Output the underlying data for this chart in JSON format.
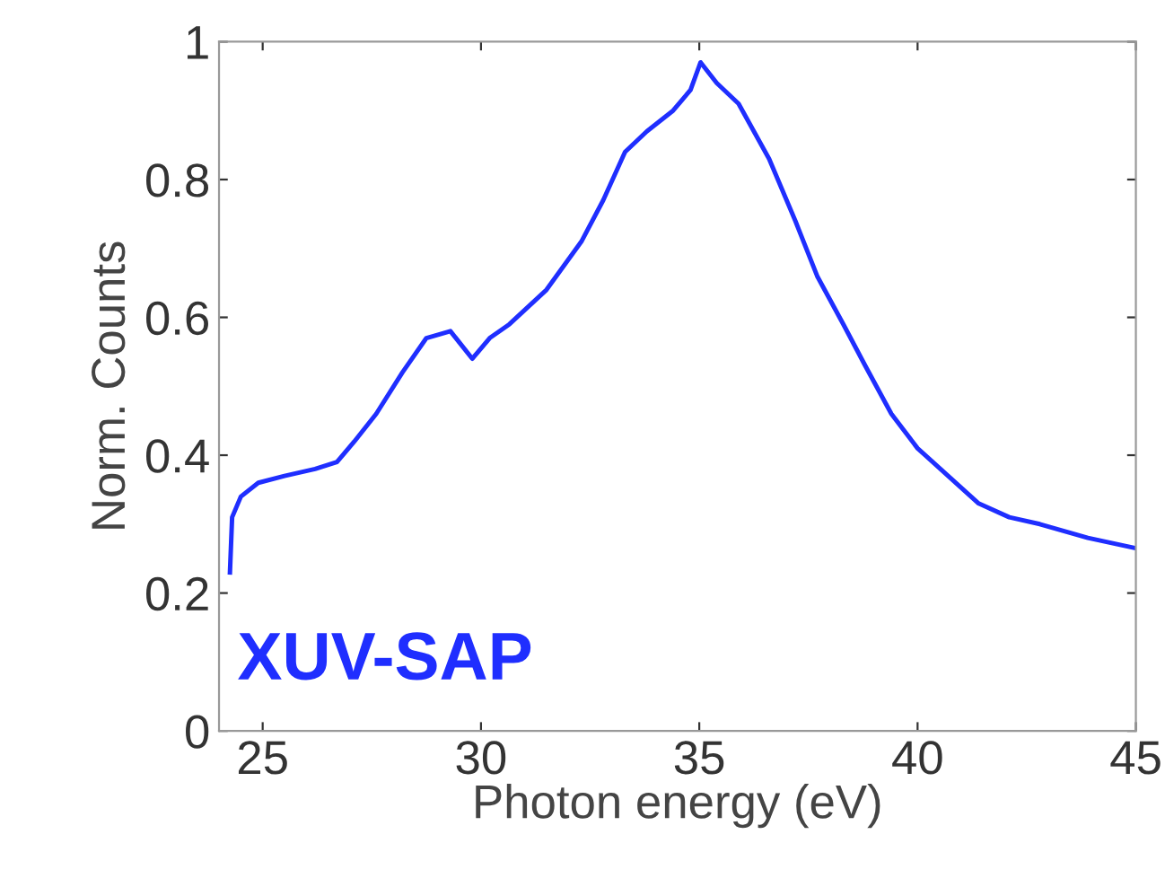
{
  "chart_data": {
    "type": "line",
    "xlabel": "Photon energy (eV)",
    "ylabel": "Norm. Counts",
    "annotations": [
      "XUV-SAP"
    ],
    "series": [
      {
        "color": "#1f2eff",
        "x": [
          24.25,
          24.3,
          24.5,
          24.9,
          25.5,
          26.2,
          26.7,
          27.1,
          27.6,
          28.2,
          28.75,
          29.3,
          29.8,
          30.2,
          30.65,
          31.5,
          32.3,
          32.8,
          33.3,
          33.8,
          34.4,
          34.8,
          35.03,
          35.4,
          35.9,
          36.6,
          37.2,
          37.7,
          38.3,
          38.8,
          39.4,
          40.0,
          40.7,
          41.4,
          42.1,
          42.8,
          43.9,
          45.0
        ],
        "values": [
          0.23,
          0.31,
          0.34,
          0.36,
          0.37,
          0.38,
          0.39,
          0.42,
          0.46,
          0.52,
          0.57,
          0.58,
          0.54,
          0.57,
          0.59,
          0.64,
          0.71,
          0.77,
          0.84,
          0.87,
          0.9,
          0.93,
          0.97,
          0.94,
          0.91,
          0.83,
          0.74,
          0.66,
          0.59,
          0.53,
          0.46,
          0.41,
          0.37,
          0.33,
          0.31,
          0.3,
          0.28,
          0.265
        ]
      }
    ],
    "xlim": [
      24,
      45
    ],
    "ylim": [
      0,
      1
    ],
    "xticks": [
      25,
      30,
      35,
      40,
      45
    ],
    "yticks": [
      0,
      0.2,
      0.4,
      0.6,
      0.8,
      1
    ],
    "grid": false,
    "legend": false
  }
}
